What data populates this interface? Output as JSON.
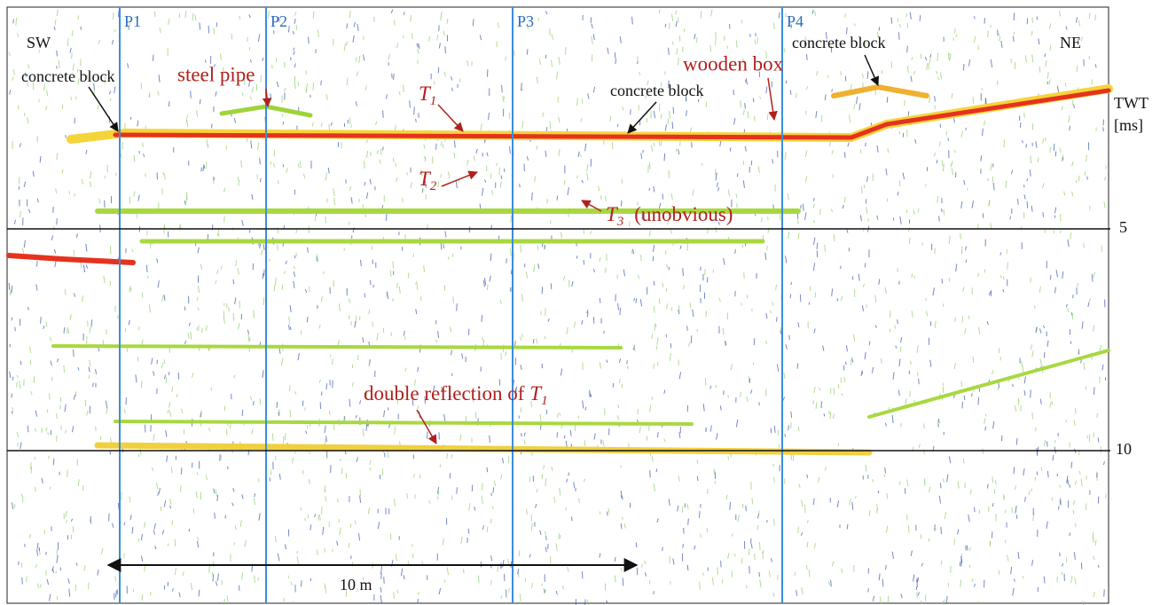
{
  "profile_labels": {
    "left": "SW",
    "right": "NE"
  },
  "markers": [
    "P1",
    "P2",
    "P3",
    "P4"
  ],
  "annotations": {
    "concrete_block_left": "concrete block",
    "concrete_block_middle": "concrete block",
    "concrete_block_right": "concrete block",
    "steel_pipe": "steel pipe",
    "wooden_box": "wooden box",
    "t1": {
      "letter": "T",
      "sub": "1"
    },
    "t2": {
      "letter": "T",
      "sub": "2"
    },
    "t3": {
      "letter": "T",
      "sub": "3",
      "note": "(unobvious)"
    },
    "double_reflection": {
      "text": "double reflection of",
      "letter": "T",
      "sub": "1"
    }
  },
  "axis": {
    "title": "TWT",
    "unit": "[ms]",
    "ticks": [
      5,
      10
    ]
  },
  "scale_bar": "10 m"
}
